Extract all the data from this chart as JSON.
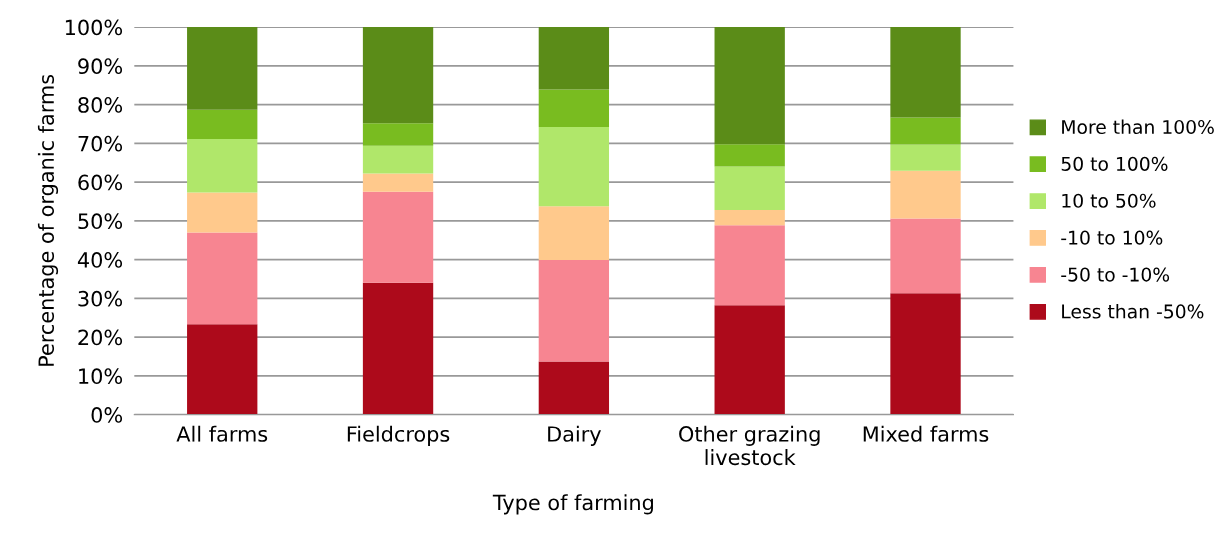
{
  "chart_data": {
    "type": "bar",
    "stacked": true,
    "xlabel": "Type of farming",
    "ylabel": "Percentage of organic farms",
    "categories": [
      "All farms",
      "Fieldcrops",
      "Dairy",
      "Other grazing\nlivestock",
      "Mixed farms"
    ],
    "series": [
      {
        "name": "Less than -50%",
        "color": "#ad0a1b",
        "values": [
          23.3,
          34.0,
          13.7,
          28.2,
          31.3
        ]
      },
      {
        "name": "-50 to -10%",
        "color": "#f78591",
        "values": [
          23.7,
          23.5,
          26.2,
          20.7,
          19.3
        ]
      },
      {
        "name": "-10 to 10%",
        "color": "#ffc98c",
        "values": [
          10.3,
          4.7,
          13.9,
          3.9,
          12.3
        ]
      },
      {
        "name": "10 to 50%",
        "color": "#b0e76a",
        "values": [
          13.8,
          7.2,
          20.4,
          11.2,
          6.8
        ]
      },
      {
        "name": "50 to 100%",
        "color": "#79bc20",
        "values": [
          7.6,
          5.8,
          9.7,
          5.8,
          7.0
        ]
      },
      {
        "name": "More than 100%",
        "color": "#5b8c18",
        "values": [
          21.3,
          24.8,
          16.1,
          30.2,
          23.3
        ]
      }
    ],
    "ylim": [
      0,
      100
    ],
    "yticks": [
      {
        "value": 0,
        "label": "0%"
      },
      {
        "value": 10,
        "label": "10%"
      },
      {
        "value": 20,
        "label": "20%"
      },
      {
        "value": 30,
        "label": "30%"
      },
      {
        "value": 40,
        "label": "40%"
      },
      {
        "value": 50,
        "label": "50%"
      },
      {
        "value": 60,
        "label": "60%"
      },
      {
        "value": 70,
        "label": "70%"
      },
      {
        "value": 80,
        "label": "80%"
      },
      {
        "value": 90,
        "label": "90%"
      },
      {
        "value": 100,
        "label": "100%"
      }
    ],
    "grid": "y",
    "legend": "right"
  }
}
